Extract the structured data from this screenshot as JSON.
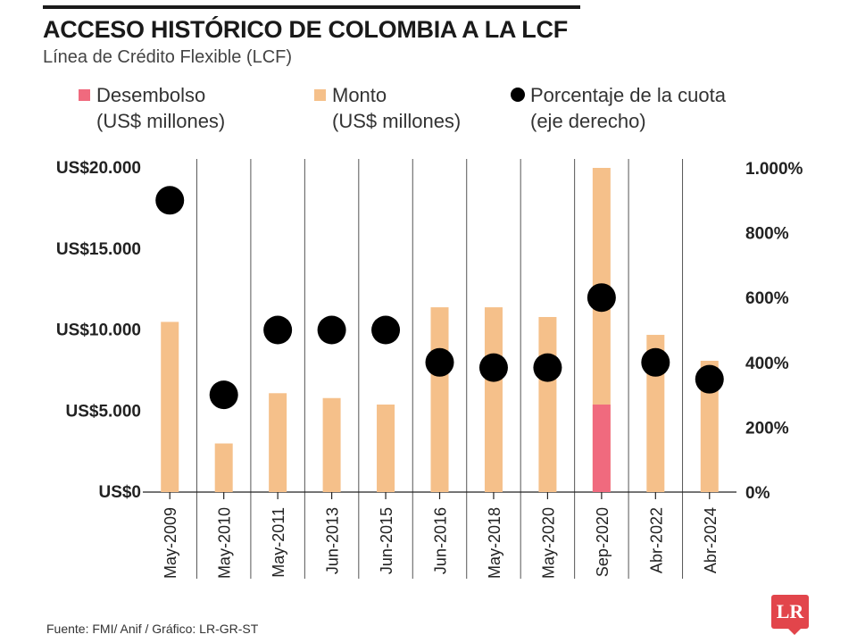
{
  "header": {
    "title": "ACCESO HISTÓRICO DE COLOMBIA A LA LCF",
    "subtitle": "Línea de Crédito Flexible (LCF)"
  },
  "legend": [
    {
      "line1": "Desembolso",
      "line2": "(US$ millones)",
      "color": "#f06a7e",
      "shape": "square"
    },
    {
      "line1": "Monto",
      "line2": "(US$ millones)",
      "color": "#f5c08a",
      "shape": "square"
    },
    {
      "line1": "Porcentaje de la cuota",
      "line2": "(eje derecho)",
      "color": "#000000",
      "shape": "circle"
    }
  ],
  "footer": {
    "source": "Fuente: FMI/ Anif / Gráfico: LR-GR-ST",
    "logo_text": "LR"
  },
  "chart_data": {
    "type": "bar",
    "categories": [
      "May-2009",
      "May-2010",
      "May-2011",
      "Jun-2013",
      "Jun-2015",
      "Jun-2016",
      "May-2018",
      "May-2020",
      "Sep-2020",
      "Abr-2022",
      "Abr-2024"
    ],
    "series": [
      {
        "name": "Monto",
        "axis": "left",
        "type": "bar",
        "color": "#f5c08a",
        "values": [
          10500,
          3000,
          6100,
          5800,
          5400,
          11400,
          11400,
          10800,
          20000,
          9700,
          8100
        ]
      },
      {
        "name": "Desembolso",
        "axis": "left",
        "type": "bar",
        "color": "#f06a7e",
        "values": [
          0,
          0,
          0,
          0,
          0,
          0,
          0,
          0,
          5400,
          0,
          0
        ]
      },
      {
        "name": "Porcentaje de la cuota",
        "axis": "right",
        "type": "scatter",
        "color": "#000000",
        "values": [
          900,
          300,
          500,
          500,
          500,
          400,
          384,
          384,
          600,
          400,
          348
        ]
      }
    ],
    "y_left": {
      "ylim": [
        0,
        20000
      ],
      "ticks": [
        "US$0",
        "US$5.000",
        "US$10.000",
        "US$15.000",
        "US$20.000"
      ],
      "tick_values": [
        0,
        5000,
        10000,
        15000,
        20000
      ]
    },
    "y_right": {
      "ylim": [
        0,
        1000
      ],
      "ticks": [
        "0%",
        "200%",
        "400%",
        "600%",
        "800%",
        "1.000%"
      ],
      "tick_values": [
        0,
        200,
        400,
        600,
        800,
        1000
      ]
    },
    "grid": "vertical separators between categories",
    "legend_position": "top"
  }
}
